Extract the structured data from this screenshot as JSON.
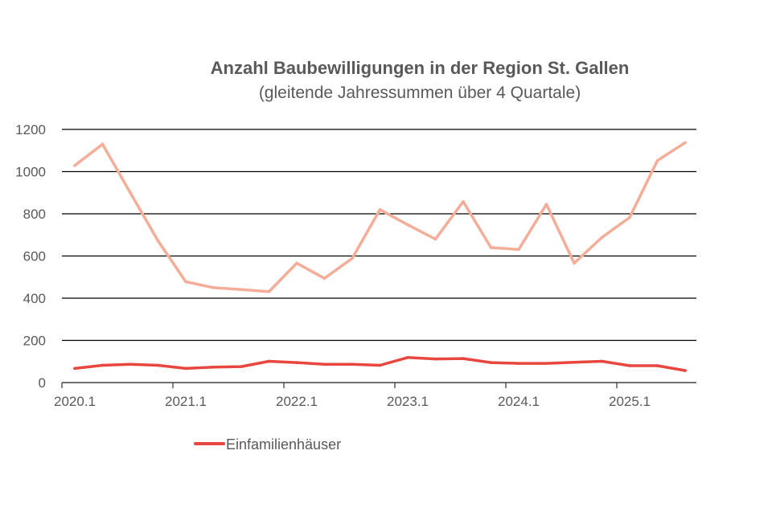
{
  "chart_data": {
    "type": "line",
    "title": "Anzahl Baubewilligungen in der Region St. Gallen",
    "subtitle": "(gleitende Jahressummen über 4 Quartale)",
    "xlabel": "",
    "ylabel": "",
    "ylim": [
      0,
      1200
    ],
    "yticks": [
      "0",
      "200",
      "400",
      "600",
      "800",
      "1000",
      "1200"
    ],
    "grid": true,
    "legend_position": "bottom-left",
    "x": [
      "2020.1",
      "2020.2",
      "2020.3",
      "2020.4",
      "2021.1",
      "2021.2",
      "2021.3",
      "2021.4",
      "2022.1",
      "2022.2",
      "2022.3",
      "2022.4",
      "2023.1",
      "2023.2",
      "2023.3",
      "2023.4",
      "2024.1",
      "2024.2",
      "2024.3",
      "2024.4",
      "2025.1",
      "2025.2",
      "2025.3"
    ],
    "xtick_labels": [
      "2020.1",
      "2021.1",
      "2022.1",
      "2023.1",
      "2024.1",
      "2025.1"
    ],
    "series": [
      {
        "color": "#f4ad98",
        "values": [
          1029,
          1130,
          900,
          672,
          478,
          450,
          441,
          431,
          566,
          494,
          589,
          820,
          748,
          680,
          858,
          640,
          631,
          845,
          566,
          688,
          783,
          1052,
          1137
        ]
      },
      {
        "name": "Einfamilienhäuser",
        "color": "#e8473f",
        "values": [
          67,
          82,
          87,
          82,
          67,
          73,
          76,
          101,
          95,
          87,
          87,
          82,
          119,
          112,
          114,
          95,
          91,
          91,
          96,
          101,
          80,
          80,
          57
        ]
      }
    ]
  }
}
